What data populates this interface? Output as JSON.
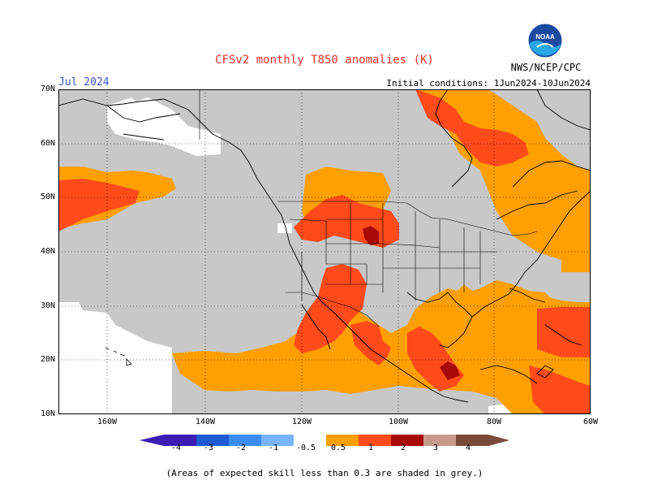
{
  "header": {
    "title": "CFSv2 monthly T850 anomalies (K)",
    "month": "Jul 2024",
    "initial_conditions": "Initial conditions: 1Jun2024-10Jun2024",
    "agency": "NWS/NCEP/CPC",
    "logo_text": "NOAA"
  },
  "map": {
    "lat_labels": [
      "70N",
      "60N",
      "50N",
      "40N",
      "30N",
      "20N",
      "10N"
    ],
    "lon_labels": [
      "160W",
      "140W",
      "120W",
      "100W",
      "80W",
      "60W"
    ],
    "colors": {
      "skill_grey": "#c8c8c8",
      "c_0_5_1": "#ff9f00",
      "c_1_2": "#ff4a1a",
      "c_2_3": "#a90808",
      "land": "#ffffff",
      "coast": "#000000"
    }
  },
  "colorbar": {
    "labels": [
      "-4",
      "-3",
      "-2",
      "-1",
      "-0.5",
      "0.5",
      "1",
      "2",
      "3",
      "4"
    ],
    "colors": [
      "#3a1eb4",
      "#1e5ad2",
      "#3c8cf0",
      "#78b4ff",
      "#ffffff",
      "#ff9f00",
      "#ff4a1a",
      "#a90808",
      "#c89a8c",
      "#7a4a3a"
    ]
  },
  "footnote": "(Areas of expected skill less than 0.3 are shaded in grey.)"
}
